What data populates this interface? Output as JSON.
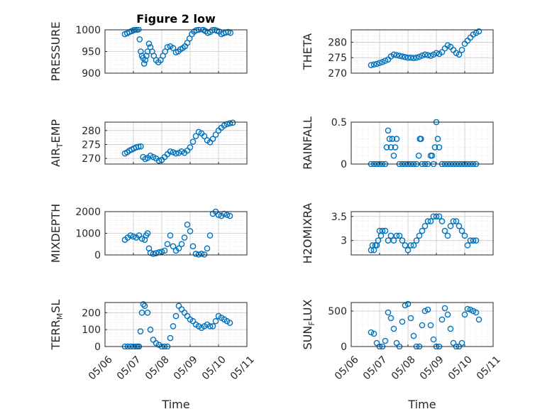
{
  "figure": {
    "title": "Figure 2 low",
    "xlabel": "Time",
    "marker_color": "#0072BD",
    "x_ticks": [
      "05/06",
      "05/07",
      "05/08",
      "05/09",
      "05/10",
      "05/11"
    ]
  },
  "chart_data": [
    {
      "type": "scatter",
      "id": "pressure",
      "ylabel": "PRESSURE",
      "ylim": [
        900,
        1000
      ],
      "yticks": [
        900,
        950,
        1000
      ],
      "grid": true,
      "xlim": [
        0,
        5
      ],
      "x": [
        0.7,
        0.78,
        0.86,
        0.94,
        1.0,
        1.06,
        1.12,
        1.18,
        1.22,
        1.26,
        1.3,
        1.34,
        1.38,
        1.42,
        1.46,
        1.5,
        1.55,
        1.6,
        1.66,
        1.72,
        1.8,
        1.88,
        1.96,
        2.04,
        2.12,
        2.2,
        2.3,
        2.4,
        2.5,
        2.58,
        2.66,
        2.74,
        2.82,
        2.9,
        2.98,
        3.06,
        3.14,
        3.22,
        3.3,
        3.38,
        3.46,
        3.54,
        3.62,
        3.7,
        3.78,
        3.86,
        3.94,
        4.02,
        4.1,
        4.18,
        4.26,
        4.34,
        4.42
      ],
      "y": [
        990,
        992,
        995,
        997,
        999,
        1000,
        1000,
        1001,
        978,
        950,
        940,
        935,
        922,
        930,
        940,
        950,
        968,
        960,
        950,
        940,
        930,
        925,
        930,
        940,
        950,
        960,
        962,
        958,
        948,
        950,
        955,
        958,
        962,
        970,
        980,
        990,
        996,
        999,
        1000,
        1002,
        1000,
        997,
        993,
        995,
        999,
        1000,
        998,
        996,
        990,
        992,
        994,
        995,
        993
      ]
    },
    {
      "type": "scatter",
      "id": "theta",
      "ylabel": "THETA",
      "ylim": [
        270,
        284
      ],
      "yticks": [
        270,
        275,
        280
      ],
      "grid": true,
      "xlim": [
        0,
        5
      ],
      "x": [
        0.7,
        0.8,
        0.9,
        1.0,
        1.1,
        1.2,
        1.3,
        1.4,
        1.5,
        1.6,
        1.7,
        1.8,
        1.9,
        2.0,
        2.1,
        2.2,
        2.3,
        2.4,
        2.5,
        2.6,
        2.7,
        2.8,
        2.9,
        3.0,
        3.1,
        3.2,
        3.3,
        3.4,
        3.5,
        3.6,
        3.7,
        3.8,
        3.9,
        4.0,
        4.1,
        4.2,
        4.3,
        4.4,
        4.5
      ],
      "y": [
        272.6,
        272.8,
        273.0,
        273.3,
        273.6,
        274.0,
        274.4,
        275.4,
        276.0,
        275.8,
        275.6,
        275.4,
        275.2,
        275.0,
        275.0,
        274.9,
        275.0,
        275.3,
        275.7,
        276.0,
        275.8,
        275.6,
        276.0,
        276.5,
        276.2,
        276.8,
        278.0,
        279.0,
        278.5,
        277.5,
        276.5,
        276.0,
        277.5,
        279.5,
        280.5,
        281.5,
        282.5,
        283.0,
        283.5
      ]
    },
    {
      "type": "scatter",
      "id": "air_temp",
      "ylabel": "AIR_TEMP",
      "ylim": [
        268,
        283
      ],
      "yticks": [
        270,
        275,
        280
      ],
      "grid": true,
      "xlim": [
        0,
        5
      ],
      "x": [
        0.7,
        0.78,
        0.86,
        0.94,
        1.02,
        1.1,
        1.18,
        1.26,
        1.34,
        1.42,
        1.5,
        1.6,
        1.7,
        1.8,
        1.9,
        2.0,
        2.1,
        2.2,
        2.3,
        2.4,
        2.5,
        2.6,
        2.7,
        2.8,
        2.9,
        3.0,
        3.1,
        3.2,
        3.3,
        3.4,
        3.5,
        3.6,
        3.7,
        3.8,
        3.9,
        4.0,
        4.1,
        4.2,
        4.3,
        4.4,
        4.5
      ],
      "y": [
        271.8,
        272.2,
        272.8,
        273.2,
        273.6,
        274.0,
        274.2,
        274.3,
        270.5,
        269.8,
        270.2,
        271.0,
        270.5,
        270.0,
        269.2,
        269.5,
        270.5,
        271.5,
        272.5,
        272.2,
        271.8,
        272.0,
        272.5,
        272.0,
        272.8,
        274.0,
        276.0,
        278.0,
        279.5,
        279.0,
        278.0,
        276.5,
        275.8,
        277.0,
        278.5,
        280.0,
        281.0,
        281.8,
        282.3,
        282.6,
        282.8
      ]
    },
    {
      "type": "scatter",
      "id": "rainfall",
      "ylabel": "RAINFALL",
      "ylim": [
        0,
        0.5
      ],
      "yticks": [
        0,
        0.5
      ],
      "grid": true,
      "xlim": [
        0,
        5
      ],
      "x": [
        0.7,
        0.8,
        0.9,
        1.0,
        1.1,
        1.2,
        1.25,
        1.3,
        1.35,
        1.4,
        1.45,
        1.5,
        1.55,
        1.6,
        1.7,
        1.8,
        1.9,
        2.0,
        2.1,
        2.2,
        2.3,
        2.38,
        2.42,
        2.46,
        2.5,
        2.6,
        2.7,
        2.8,
        2.85,
        2.9,
        2.95,
        3.0,
        3.05,
        3.1,
        3.2,
        3.3,
        3.4,
        3.5,
        3.6,
        3.7,
        3.8,
        3.9,
        4.0,
        4.1,
        4.2,
        4.3,
        4.4
      ],
      "y": [
        0,
        0,
        0,
        0,
        0,
        0,
        0.2,
        0.4,
        0.3,
        0.2,
        0.3,
        0.1,
        0.2,
        0.3,
        0,
        0,
        0,
        0,
        0,
        0,
        0,
        0.1,
        0.3,
        0.3,
        0,
        0,
        0,
        0.1,
        0.1,
        0,
        0.2,
        0.5,
        0.3,
        0.2,
        0,
        0,
        0,
        0,
        0,
        0,
        0,
        0,
        0,
        0,
        0,
        0,
        0
      ]
    },
    {
      "type": "scatter",
      "id": "mixdepth",
      "ylabel": "MIXDEPTH",
      "ylim": [
        0,
        2000
      ],
      "yticks": [
        0,
        1000,
        2000
      ],
      "grid": true,
      "xlim": [
        0,
        5
      ],
      "x": [
        0.7,
        0.8,
        0.9,
        1.0,
        1.1,
        1.2,
        1.3,
        1.4,
        1.45,
        1.5,
        1.55,
        1.6,
        1.7,
        1.8,
        1.9,
        2.0,
        2.1,
        2.2,
        2.3,
        2.4,
        2.5,
        2.6,
        2.7,
        2.8,
        2.9,
        3.0,
        3.1,
        3.2,
        3.3,
        3.4,
        3.5,
        3.6,
        3.7,
        3.8,
        3.9,
        4.0,
        4.1,
        4.2,
        4.3,
        4.4
      ],
      "y": [
        700,
        800,
        900,
        850,
        800,
        900,
        750,
        700,
        900,
        1000,
        300,
        100,
        50,
        80,
        120,
        150,
        200,
        500,
        900,
        400,
        200,
        300,
        500,
        800,
        1400,
        1100,
        400,
        50,
        20,
        50,
        20,
        300,
        900,
        1900,
        2000,
        1850,
        1800,
        1900,
        1850,
        1800
      ]
    },
    {
      "type": "scatter",
      "id": "h2omixra",
      "ylabel": "H2OMIXRA",
      "ylim": [
        2.7,
        3.6
      ],
      "yticks": [
        3,
        3.5
      ],
      "grid": true,
      "xlim": [
        0,
        5
      ],
      "x": [
        0.7,
        0.75,
        0.8,
        0.85,
        0.9,
        0.95,
        1.0,
        1.05,
        1.1,
        1.2,
        1.3,
        1.4,
        1.5,
        1.6,
        1.7,
        1.8,
        1.9,
        2.0,
        2.1,
        2.2,
        2.3,
        2.4,
        2.5,
        2.6,
        2.7,
        2.8,
        2.9,
        3.0,
        3.1,
        3.2,
        3.3,
        3.4,
        3.5,
        3.6,
        3.7,
        3.8,
        3.9,
        4.0,
        4.1,
        4.2,
        4.3,
        4.4
      ],
      "y": [
        2.8,
        2.9,
        2.8,
        2.9,
        2.9,
        3.0,
        3.2,
        3.1,
        3.2,
        3.2,
        3.0,
        3.1,
        3.0,
        3.1,
        3.1,
        3.0,
        2.9,
        2.8,
        2.9,
        2.9,
        3.0,
        3.1,
        3.2,
        3.3,
        3.4,
        3.4,
        3.5,
        3.5,
        3.5,
        3.4,
        3.2,
        3.1,
        3.3,
        3.4,
        3.4,
        3.3,
        3.2,
        3.1,
        2.9,
        3.0,
        3.0,
        3.0
      ]
    },
    {
      "type": "scatter",
      "id": "terr_msl",
      "ylabel": "TERR_MSL",
      "ylim": [
        0,
        260
      ],
      "yticks": [
        0,
        100,
        200
      ],
      "grid": true,
      "xlim": [
        0,
        5
      ],
      "x": [
        0.7,
        0.8,
        0.9,
        1.0,
        1.1,
        1.15,
        1.2,
        1.25,
        1.3,
        1.35,
        1.4,
        1.5,
        1.6,
        1.7,
        1.8,
        1.9,
        2.0,
        2.1,
        2.2,
        2.3,
        2.4,
        2.5,
        2.6,
        2.7,
        2.8,
        2.9,
        3.0,
        3.1,
        3.2,
        3.3,
        3.4,
        3.5,
        3.6,
        3.7,
        3.8,
        3.9,
        4.0,
        4.1,
        4.2,
        4.3,
        4.4
      ],
      "y": [
        0,
        0,
        0,
        0,
        0,
        0,
        0,
        90,
        200,
        250,
        240,
        200,
        100,
        40,
        20,
        10,
        0,
        0,
        0,
        50,
        120,
        180,
        240,
        220,
        200,
        180,
        160,
        150,
        130,
        120,
        110,
        120,
        130,
        120,
        120,
        150,
        180,
        170,
        160,
        150,
        140
      ]
    },
    {
      "type": "scatter",
      "id": "sun_flux",
      "ylabel": "SUN_FLUX",
      "ylim": [
        0,
        620
      ],
      "yticks": [
        0,
        500
      ],
      "grid": true,
      "xlim": [
        0,
        5
      ],
      "x": [
        0.7,
        0.8,
        0.9,
        1.0,
        1.1,
        1.2,
        1.3,
        1.4,
        1.5,
        1.6,
        1.7,
        1.8,
        1.9,
        2.0,
        2.1,
        2.2,
        2.3,
        2.4,
        2.5,
        2.6,
        2.7,
        2.8,
        2.9,
        3.0,
        3.1,
        3.2,
        3.3,
        3.4,
        3.5,
        3.6,
        3.7,
        3.8,
        3.9,
        4.0,
        4.1,
        4.2,
        4.3,
        4.4,
        4.5
      ],
      "y": [
        200,
        180,
        50,
        0,
        0,
        80,
        480,
        400,
        250,
        50,
        0,
        350,
        580,
        600,
        400,
        150,
        0,
        0,
        300,
        500,
        520,
        300,
        100,
        0,
        0,
        380,
        540,
        450,
        250,
        50,
        0,
        0,
        50,
        450,
        530,
        520,
        500,
        480,
        380
      ]
    }
  ]
}
